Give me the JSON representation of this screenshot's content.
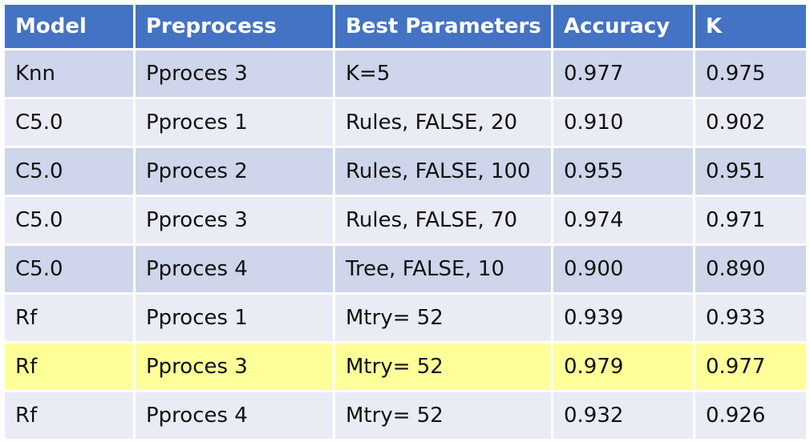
{
  "table": {
    "headers": [
      "Model",
      "Preprocess",
      "Best Parameters",
      "Accuracy",
      "K"
    ],
    "rows": [
      [
        "Knn",
        "Pproces 3",
        "K=5",
        "0.977",
        "0.975"
      ],
      [
        "C5.0",
        "Pproces 1",
        "Rules, FALSE, 20",
        "0.910",
        "0.902"
      ],
      [
        "C5.0",
        "Pproces 2",
        "Rules, FALSE, 100",
        "0.955",
        "0.951"
      ],
      [
        "C5.0",
        "Pproces 3",
        "Rules, FALSE, 70",
        "0.974",
        "0.971"
      ],
      [
        "C5.0",
        "Pproces 4",
        "Tree, FALSE, 10",
        "0.900",
        "0.890"
      ],
      [
        "Rf",
        "Pproces 1",
        "Mtry= 52",
        "0.939",
        "0.933"
      ],
      [
        "Rf",
        "Pproces 3",
        "Mtry= 52",
        "0.979",
        "0.977"
      ],
      [
        "Rf",
        "Pproces 4",
        "Mtry= 52",
        "0.932",
        "0.926"
      ]
    ]
  },
  "colors": {
    "header_bg": "#4472c4",
    "band_dark": "#cfd5ea",
    "band_light": "#e9ebf5",
    "highlight": "#ffff99"
  }
}
